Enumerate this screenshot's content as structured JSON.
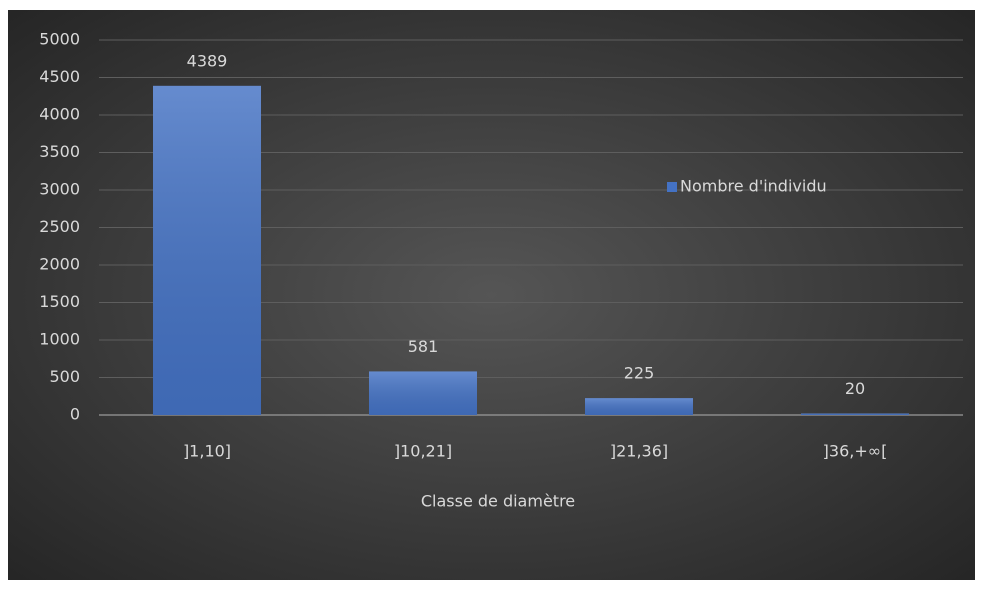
{
  "chart_data": {
    "type": "bar",
    "categories": [
      "]1,10]",
      "]10,21]",
      "]21,36]",
      "]36,+∞["
    ],
    "series": [
      {
        "name": "Nombre d'individu",
        "color": "#4472c4",
        "values": [
          4389,
          581,
          225,
          20
        ]
      }
    ],
    "xlabel": "Classe de diamètre",
    "ylim": [
      0,
      5000
    ],
    "yticks": [
      0,
      500,
      1000,
      1500,
      2000,
      2500,
      3000,
      3500,
      4000,
      4500,
      5000
    ],
    "grid": true,
    "legend": "right",
    "data_labels": true
  }
}
